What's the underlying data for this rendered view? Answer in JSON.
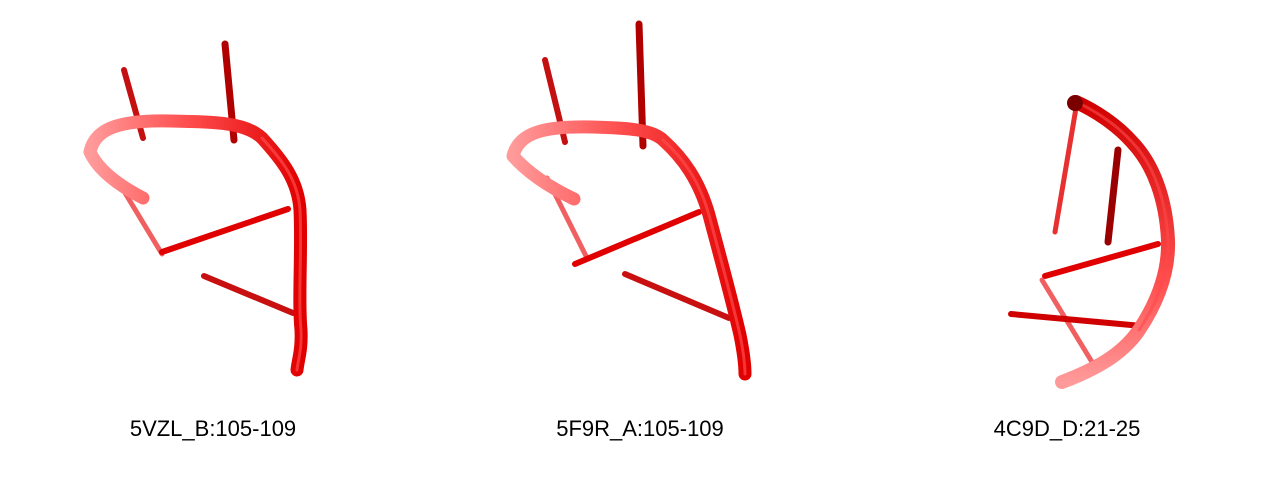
{
  "structures": [
    {
      "label": "5VZL_B:105-109"
    },
    {
      "label": "5F9R_A:105-109"
    },
    {
      "label": "4C9D_D:21-25"
    }
  ],
  "colors": {
    "backbone": "#e00000",
    "backbone_highlight": "#ff3b3b",
    "backbone_shadow": "#8c0000",
    "background": "#ffffff",
    "caption_text": "#000000"
  }
}
